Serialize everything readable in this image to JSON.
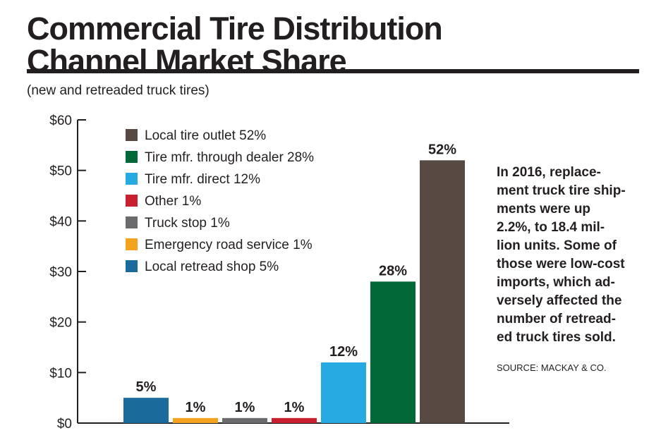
{
  "title_lines": [
    "Commercial Tire Distribution",
    "Channel Market Share"
  ],
  "subtitle": "(new and retreaded truck tires)",
  "note": "In 2016, replace-\nment truck tire ship-\nments were up\n2.2%, to 18.4 mil-\nlion units. Some of\nthose were low-cost\nimports, which ad-\nversely affected the\nnumber of retread-\ned truck tires sold.",
  "source": "SOURCE: MACKAY & CO.",
  "chart_data": {
    "type": "bar",
    "categories": [
      "Local retread shop",
      "Emergency road service",
      "Truck stop",
      "Other",
      "Tire mfr. direct",
      "Tire mfr. through dealer",
      "Local tire outlet"
    ],
    "values": [
      5,
      1,
      1,
      1,
      12,
      28,
      52
    ],
    "data_labels": [
      "5%",
      "1%",
      "1%",
      "1%",
      "12%",
      "28%",
      "52%"
    ],
    "colors": [
      "#1b6a9c",
      "#f5a21e",
      "#6b6b6d",
      "#c8202f",
      "#27aae1",
      "#016838",
      "#564a42"
    ],
    "ylim": [
      0,
      60
    ],
    "yticks": [
      0,
      10,
      20,
      30,
      40,
      50,
      60
    ],
    "ytick_labels": [
      "$0",
      "$10",
      "$20",
      "$30",
      "$40",
      "$50",
      "$60"
    ],
    "legend_position": "top-left",
    "legend": [
      {
        "label": "Local tire outlet 52%",
        "color": "#564a42"
      },
      {
        "label": "Tire mfr. through dealer 28%",
        "color": "#016838"
      },
      {
        "label": "Tire mfr. direct 12%",
        "color": "#27aae1"
      },
      {
        "label": "Other 1%",
        "color": "#c8202f"
      },
      {
        "label": "Truck stop 1%",
        "color": "#6b6b6d"
      },
      {
        "label": "Emergency road service 1%",
        "color": "#f5a21e"
      },
      {
        "label": "Local retread shop 5%",
        "color": "#1b6a9c"
      }
    ],
    "grid": false
  }
}
